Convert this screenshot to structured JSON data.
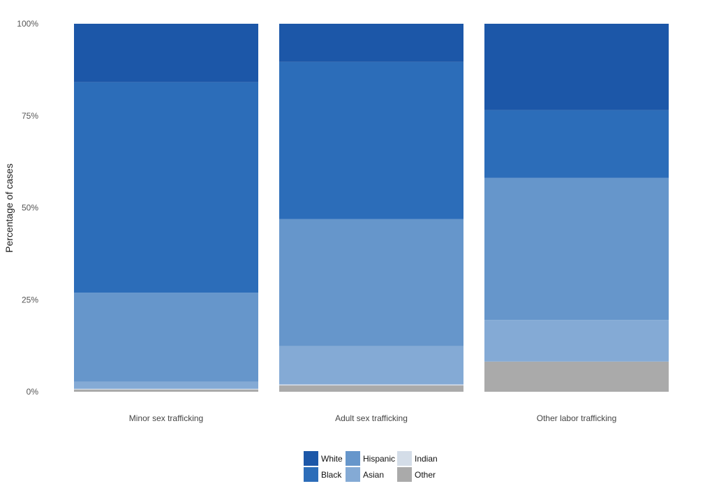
{
  "chart_data": {
    "type": "bar",
    "stacked": true,
    "orientation": "vertical",
    "ylabel": "Percentage of cases",
    "xlabel": "",
    "ylim": [
      0,
      100
    ],
    "yticks": [
      {
        "value": 0,
        "label": "0%"
      },
      {
        "value": 25,
        "label": "25%"
      },
      {
        "value": 50,
        "label": "50%"
      },
      {
        "value": 75,
        "label": "75%"
      },
      {
        "value": 100,
        "label": "100%"
      }
    ],
    "grid": false,
    "legend_position": "bottom",
    "categories": [
      "Minor sex trafficking",
      "Adult sex trafficking",
      "Other labor trafficking"
    ],
    "series": [
      {
        "name": "Other",
        "color": "#aaaaaa",
        "values": [
          0.6,
          1.7,
          8.2
        ]
      },
      {
        "name": "Indian",
        "color": "#d4dde8",
        "values": [
          0.2,
          0.3,
          0.0
        ]
      },
      {
        "name": "Asian",
        "color": "#84aad5",
        "values": [
          1.9,
          10.4,
          11.3
        ]
      },
      {
        "name": "Hispanic",
        "color": "#6696cb",
        "values": [
          24.2,
          34.5,
          38.6
        ]
      },
      {
        "name": "Black",
        "color": "#2c6db9",
        "values": [
          57.2,
          42.7,
          18.4
        ]
      },
      {
        "name": "White",
        "color": "#1c57a8",
        "values": [
          15.9,
          10.4,
          23.5
        ]
      }
    ],
    "legend_order": [
      "White",
      "Black",
      "Hispanic",
      "Asian",
      "Indian",
      "Other"
    ]
  }
}
